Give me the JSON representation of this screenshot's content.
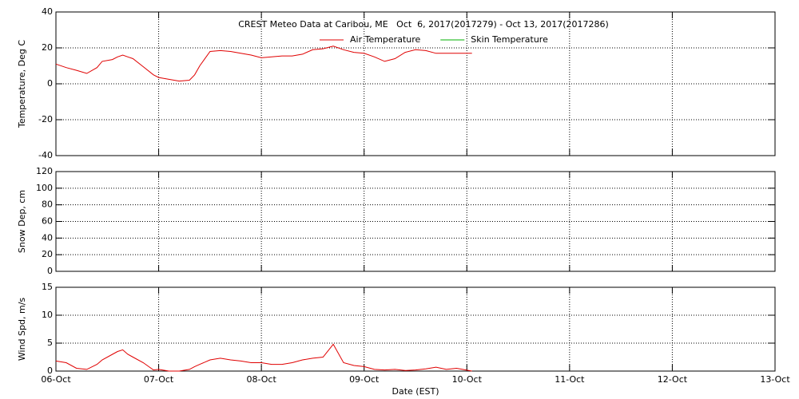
{
  "chart_data": [
    {
      "type": "line",
      "title": "CREST Meteo Data at Caribou, ME   Oct  6, 2017(2017279) - Oct 13, 2017(2017286)",
      "y_label": "Temperature, Deg C",
      "xlim": [
        6,
        13
      ],
      "xticks": [
        6,
        7,
        8,
        9,
        10,
        11,
        12,
        13
      ],
      "ylim": [
        -40,
        40
      ],
      "yticks": [
        -40,
        -20,
        0,
        20,
        40
      ],
      "grid": true,
      "legend": "top",
      "x": [
        6.0,
        6.1,
        6.2,
        6.3,
        6.4,
        6.45,
        6.55,
        6.6,
        6.65,
        6.7,
        6.75,
        6.85,
        6.95,
        7.0,
        7.1,
        7.2,
        7.3,
        7.35,
        7.4,
        7.5,
        7.6,
        7.7,
        7.8,
        7.9,
        8.0,
        8.1,
        8.2,
        8.3,
        8.4,
        8.5,
        8.6,
        8.7,
        8.8,
        8.9,
        9.0,
        9.1,
        9.2,
        9.3,
        9.4,
        9.5,
        9.6,
        9.7,
        9.8,
        9.9,
        10.05
      ],
      "series": [
        {
          "name": "Air Temperature",
          "color": "#e00000",
          "values": [
            11,
            9,
            7.5,
            5.8,
            9,
            12.5,
            13.5,
            15,
            16,
            15,
            14,
            9.5,
            5,
            3.5,
            2.5,
            1.5,
            2,
            5,
            10,
            18,
            18.5,
            18,
            17,
            16,
            14.5,
            15,
            15.5,
            15.5,
            16.5,
            19,
            19.5,
            21,
            19,
            17.5,
            17,
            15,
            12.5,
            14,
            17.5,
            19,
            18.5,
            17,
            17,
            17,
            17
          ]
        },
        {
          "name": "Skin Temperature",
          "color": "#00b000",
          "values": [
            null,
            null,
            null,
            null,
            null,
            null,
            null,
            null,
            null,
            null,
            null,
            null,
            null,
            null,
            null,
            null,
            null,
            null,
            null,
            null,
            null,
            null,
            null,
            null,
            null,
            null,
            null,
            null,
            null,
            null,
            null,
            null,
            null,
            null,
            null,
            null,
            null,
            null,
            null,
            null,
            null,
            null,
            null,
            null,
            null
          ]
        }
      ]
    },
    {
      "type": "line",
      "y_label": "Snow Dep, cm",
      "xlim": [
        6,
        13
      ],
      "xticks": [
        6,
        7,
        8,
        9,
        10,
        11,
        12,
        13
      ],
      "ylim": [
        0,
        120
      ],
      "yticks": [
        0,
        20,
        40,
        60,
        80,
        100,
        120
      ],
      "grid": true,
      "x": [],
      "series": []
    },
    {
      "type": "line",
      "y_label": "Wind Spd, m/s",
      "x_label": "Date (EST)",
      "xlim": [
        6,
        13
      ],
      "xticks": [
        {
          "value": 6,
          "label": "06-Oct"
        },
        {
          "value": 7,
          "label": "07-Oct"
        },
        {
          "value": 8,
          "label": "08-Oct"
        },
        {
          "value": 9,
          "label": "09-Oct"
        },
        {
          "value": 10,
          "label": "10-Oct"
        },
        {
          "value": 11,
          "label": "11-Oct"
        },
        {
          "value": 12,
          "label": "12-Oct"
        },
        {
          "value": 13,
          "label": "13-Oct"
        }
      ],
      "ylim": [
        0,
        15
      ],
      "yticks": [
        0,
        5,
        10,
        15
      ],
      "grid": true,
      "x": [
        6.0,
        6.1,
        6.2,
        6.3,
        6.4,
        6.45,
        6.55,
        6.6,
        6.65,
        6.7,
        6.75,
        6.85,
        6.95,
        7.0,
        7.1,
        7.2,
        7.3,
        7.35,
        7.4,
        7.5,
        7.6,
        7.7,
        7.8,
        7.9,
        8.0,
        8.1,
        8.2,
        8.3,
        8.4,
        8.5,
        8.6,
        8.7,
        8.8,
        8.9,
        9.0,
        9.1,
        9.2,
        9.3,
        9.4,
        9.5,
        9.6,
        9.7,
        9.8,
        9.9,
        10.05
      ],
      "series": [
        {
          "color": "#e00000",
          "values": [
            1.8,
            1.5,
            0.5,
            0.3,
            1.2,
            2,
            3,
            3.5,
            3.8,
            3,
            2.5,
            1.5,
            0.2,
            0.3,
            0,
            0,
            0.3,
            0.8,
            1.2,
            2,
            2.3,
            2,
            1.8,
            1.5,
            1.5,
            1.2,
            1.2,
            1.5,
            2,
            2.3,
            2.5,
            4.8,
            1.5,
            1,
            0.8,
            0.3,
            0.2,
            0.3,
            0.1,
            0.2,
            0.4,
            0.7,
            0.3,
            0.5,
            0
          ]
        }
      ]
    }
  ]
}
